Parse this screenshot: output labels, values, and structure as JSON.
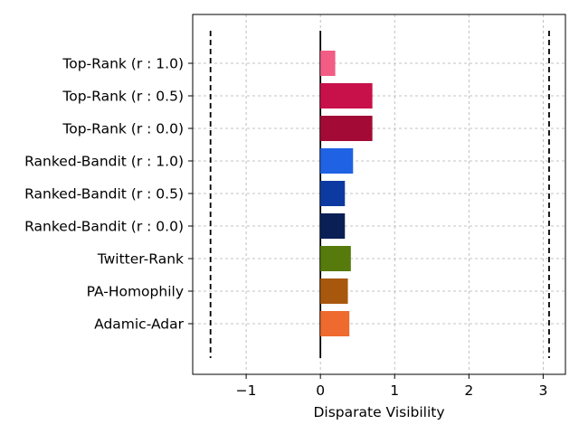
{
  "chart_data": {
    "type": "bar",
    "orientation": "horizontal",
    "title": "",
    "xlabel": "Disparate Visibility",
    "ylabel": "",
    "xlim": [
      -1.72,
      3.3
    ],
    "xticks": [
      -1,
      0,
      1,
      2,
      3
    ],
    "xtick_labels": [
      "−1",
      "0",
      "1",
      "2",
      "3"
    ],
    "grid": true,
    "reference_lines": {
      "vertical_solid_at": 0,
      "vertical_dashed_at": [
        -1.48,
        3.08
      ]
    },
    "categories": [
      "Top-Rank (r : 1.0)",
      "Top-Rank (r : 0.5)",
      "Top-Rank (r : 0.0)",
      "Ranked-Bandit (r : 1.0)",
      "Ranked-Bandit (r : 0.5)",
      "Ranked-Bandit (r : 0.0)",
      "Twitter-Rank",
      "PA-Homophily",
      "Adamic-Adar"
    ],
    "values": [
      0.2,
      0.7,
      0.7,
      0.44,
      0.33,
      0.33,
      0.41,
      0.37,
      0.39
    ],
    "colors": [
      "#f25c85",
      "#c8104a",
      "#a30a36",
      "#1f62e3",
      "#0d3aa0",
      "#0a1f55",
      "#577a0c",
      "#a8580d",
      "#ef6a2e"
    ]
  }
}
